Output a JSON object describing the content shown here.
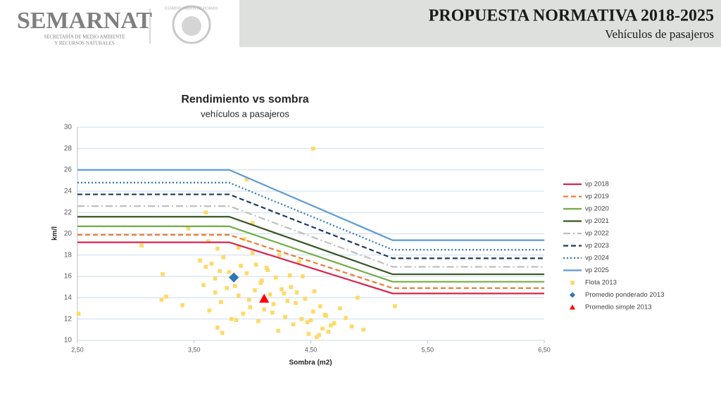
{
  "header": {
    "logo": "SEMARNAT",
    "logo_lines": [
      "SECRETARÍA DE MEDIO AMBIENTE",
      "Y RECURSOS NATURALES"
    ],
    "emblem": "ESTADOS UNIDOS MEXICANOS",
    "title": "PROPUESTA NORMATIVA 2018-2025",
    "subtitle": "Vehículos de pasajeros"
  },
  "chart_data": {
    "type": "scatter",
    "title": "Rendimiento vs sombra",
    "subtitle": "vehículos a pasajeros",
    "x_label": "Sombra (m2)",
    "y_label": "km/l",
    "xlim": [
      2.5,
      6.5
    ],
    "xticks": [
      {
        "value": 2.5,
        "label": "2,50"
      },
      {
        "value": 3.5,
        "label": "3,50"
      },
      {
        "value": 4.5,
        "label": "4,50"
      },
      {
        "value": 5.5,
        "label": "5,50"
      },
      {
        "value": 6.5,
        "label": "6,50"
      }
    ],
    "ylim": [
      10,
      30
    ],
    "yticks": [
      10,
      12,
      14,
      16,
      18,
      20,
      22,
      24,
      26,
      28,
      30
    ],
    "grid": true,
    "legend": "right",
    "series": [
      {
        "name": "vp 2018",
        "type": "line",
        "dash": "solid",
        "color": "#d6254d",
        "x": [
          2.5,
          3.8,
          5.2,
          6.5
        ],
        "values": [
          19.2,
          19.2,
          14.4,
          14.4
        ]
      },
      {
        "name": "vp 2019",
        "type": "line",
        "dash": "dashed",
        "color": "#ed7d31",
        "x": [
          2.5,
          3.8,
          5.2,
          6.5
        ],
        "values": [
          19.9,
          19.9,
          14.9,
          14.9
        ]
      },
      {
        "name": "vp 2020",
        "type": "line",
        "dash": "solid",
        "color": "#70ad47",
        "x": [
          2.5,
          3.8,
          5.2,
          6.5
        ],
        "values": [
          20.7,
          20.7,
          15.5,
          15.5
        ]
      },
      {
        "name": "vp 2021",
        "type": "line",
        "dash": "solid",
        "color": "#375623",
        "x": [
          2.5,
          3.8,
          5.2,
          6.5
        ],
        "values": [
          21.6,
          21.6,
          16.2,
          16.2
        ]
      },
      {
        "name": "vp 2022",
        "type": "line",
        "dash": "dashdot",
        "color": "#bfbfbf",
        "x": [
          2.5,
          3.8,
          5.2,
          6.5
        ],
        "values": [
          22.6,
          22.6,
          16.9,
          16.9
        ]
      },
      {
        "name": "vp 2023",
        "type": "line",
        "dash": "dashed",
        "color": "#1f3864",
        "x": [
          2.5,
          3.8,
          5.2,
          6.5
        ],
        "values": [
          23.7,
          23.7,
          17.7,
          17.7
        ]
      },
      {
        "name": "vp 2024",
        "type": "line",
        "dash": "dotted",
        "color": "#2e75b6",
        "x": [
          2.5,
          3.8,
          5.2,
          6.5
        ],
        "values": [
          24.8,
          24.8,
          18.5,
          18.5
        ]
      },
      {
        "name": "vp 2025",
        "type": "line",
        "dash": "solid",
        "color": "#5b9bd5",
        "x": [
          2.5,
          3.8,
          5.2,
          6.5
        ],
        "values": [
          26.0,
          26.0,
          19.4,
          19.4
        ]
      },
      {
        "name": "Flota 2013",
        "type": "scatter",
        "marker": "square",
        "color": "#ffd966",
        "x": [
          2.51,
          3.05,
          3.23,
          3.22,
          3.26,
          3.4,
          3.45,
          3.6,
          4.52,
          3.95,
          4.0,
          5.22,
          3.7,
          3.72,
          3.65,
          3.68,
          3.6,
          3.62,
          3.75,
          3.78,
          3.8,
          3.58,
          3.55,
          3.63,
          3.7,
          3.73,
          3.85,
          3.88,
          3.9,
          3.92,
          3.95,
          3.98,
          4.0,
          4.02,
          4.05,
          4.08,
          4.1,
          4.12,
          4.15,
          4.18,
          4.2,
          4.22,
          4.25,
          4.28,
          4.3,
          4.32,
          4.35,
          4.38,
          4.4,
          4.42,
          4.45,
          4.48,
          4.5,
          4.52,
          4.55,
          4.58,
          4.6,
          4.62,
          4.65,
          4.7,
          4.75,
          4.8,
          4.85,
          4.9,
          4.95,
          3.88,
          3.93,
          3.97,
          4.03,
          4.07,
          4.13,
          4.17,
          4.23,
          4.27,
          4.33,
          4.37,
          4.43,
          4.47,
          4.53,
          4.57,
          4.63,
          4.67,
          3.68,
          3.74,
          3.82,
          3.86
        ],
        "values": [
          12.5,
          18.9,
          16.2,
          13.8,
          14.1,
          13.3,
          20.5,
          22.0,
          28.0,
          25.1,
          21.0,
          13.2,
          18.6,
          16.5,
          17.2,
          15.8,
          16.9,
          19.3,
          17.8,
          14.9,
          16.4,
          15.2,
          17.5,
          12.8,
          11.2,
          13.6,
          15.1,
          14.2,
          17.0,
          12.5,
          16.3,
          13.1,
          18.2,
          14.7,
          11.8,
          15.6,
          12.9,
          16.8,
          14.3,
          13.4,
          15.9,
          10.9,
          14.8,
          12.2,
          13.7,
          16.1,
          11.5,
          14.5,
          17.4,
          12.0,
          13.9,
          10.6,
          11.9,
          12.7,
          10.3,
          13.2,
          11.1,
          12.4,
          10.8,
          11.6,
          13.0,
          12.1,
          11.3,
          14.0,
          11.0,
          18.7,
          19.5,
          13.8,
          17.1,
          15.4,
          16.6,
          12.6,
          18.0,
          14.4,
          15.0,
          13.5,
          16.0,
          11.7,
          14.6,
          10.5,
          12.3,
          11.4,
          14.5,
          10.7,
          12.0,
          11.9
        ]
      },
      {
        "name": "Promedio ponderado 2013",
        "type": "scatter",
        "marker": "diamond",
        "color": "#2e75b6",
        "x": [
          3.84
        ],
        "values": [
          15.9
        ]
      },
      {
        "name": "Promedio simple 2013",
        "type": "scatter",
        "marker": "triangle",
        "color": "#ff0000",
        "x": [
          4.1
        ],
        "values": [
          13.9
        ]
      }
    ]
  }
}
